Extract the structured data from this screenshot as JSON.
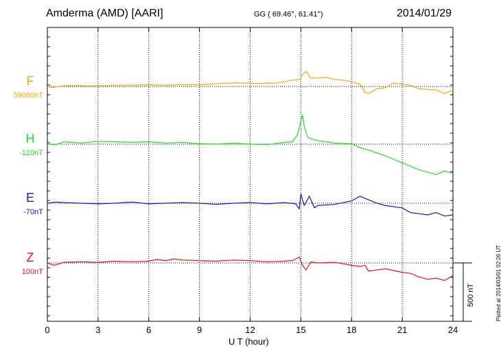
{
  "header": {
    "station": "Amderma (AMD)  [AARI]",
    "coords": "GG ( 69.46°,  61.41°)",
    "date": "2014/01/29"
  },
  "footer": {
    "plotted": "Plotted at 2014/03/01 02:26 UT"
  },
  "chart_data": {
    "type": "line",
    "xlabel": "U T (hour)",
    "xlim": [
      0,
      24
    ],
    "x_ticks": [
      "0",
      "3",
      "6",
      "9",
      "12",
      "15",
      "18",
      "21",
      "24"
    ],
    "grid": true,
    "scale_bar": {
      "label": "500 nT",
      "value_nT": 500
    },
    "series": [
      {
        "name": "F",
        "baseline_label": "59060nT",
        "color": "#f0a800",
        "x": [
          0,
          0.3,
          0.8,
          1.5,
          2.5,
          4,
          5,
          6,
          7,
          8,
          9,
          10,
          11,
          12,
          12.5,
          13,
          13.5,
          14,
          14.5,
          14.9,
          15.1,
          15.3,
          15.6,
          16,
          16.5,
          17,
          17.5,
          18,
          18.5,
          18.8,
          19,
          19.5,
          20,
          20.5,
          21,
          21.5,
          22,
          22.5,
          23,
          23.5,
          24
        ],
        "values": [
          0,
          -10,
          5,
          8,
          5,
          10,
          12,
          14,
          12,
          15,
          15,
          25,
          30,
          30,
          25,
          30,
          28,
          40,
          55,
          60,
          100,
          130,
          70,
          75,
          80,
          60,
          55,
          40,
          20,
          -50,
          -60,
          -20,
          -10,
          30,
          20,
          10,
          -20,
          -25,
          -30,
          -60,
          -30
        ]
      },
      {
        "name": "H",
        "baseline_label": "-120nT",
        "color": "#22dd22",
        "x": [
          0,
          0.5,
          1,
          2,
          3,
          4,
          5,
          6,
          7,
          8,
          9,
          10,
          11,
          12,
          13,
          14,
          14.5,
          14.8,
          15,
          15.1,
          15.2,
          15.4,
          15.7,
          16,
          17,
          18,
          18.5,
          19,
          20,
          21,
          22,
          22.5,
          23,
          23.5,
          24
        ],
        "values": [
          0,
          -5,
          20,
          10,
          25,
          20,
          15,
          20,
          10,
          15,
          5,
          0,
          10,
          0,
          -5,
          15,
          20,
          80,
          200,
          250,
          150,
          60,
          40,
          30,
          10,
          5,
          -30,
          -50,
          -100,
          -160,
          -220,
          -240,
          -260,
          -230,
          -250
        ]
      },
      {
        "name": "E",
        "baseline_label": "-70nT",
        "color": "#1515cc",
        "x": [
          0,
          0.5,
          1,
          2,
          3,
          4,
          5,
          6,
          7,
          8,
          9,
          10,
          11,
          12,
          13,
          14,
          14.7,
          14.9,
          15,
          15.2,
          15.5,
          15.8,
          16,
          17,
          18,
          18.5,
          19,
          19.5,
          20,
          21,
          21.5,
          22,
          22.5,
          23,
          23.5,
          24
        ],
        "values": [
          0,
          10,
          5,
          0,
          -5,
          0,
          10,
          -5,
          0,
          5,
          0,
          -10,
          0,
          5,
          -5,
          5,
          -5,
          -50,
          80,
          -20,
          60,
          -40,
          -20,
          -10,
          20,
          60,
          30,
          0,
          -20,
          -40,
          -80,
          -90,
          -100,
          -80,
          -110,
          -100
        ]
      },
      {
        "name": "Z",
        "baseline_label": "100nT",
        "color": "#ee1111",
        "x": [
          0,
          0.4,
          1,
          2,
          3,
          4,
          5,
          6,
          6.5,
          7,
          7.5,
          8,
          9,
          10,
          11,
          12,
          13,
          14,
          14.5,
          14.9,
          15.1,
          15.3,
          15.6,
          16,
          17,
          18,
          18.5,
          18.8,
          19,
          19.5,
          20,
          21,
          21.5,
          22,
          22.5,
          23,
          23.5,
          24
        ],
        "values": [
          0,
          -20,
          5,
          10,
          5,
          15,
          10,
          15,
          30,
          20,
          35,
          25,
          20,
          15,
          25,
          20,
          10,
          15,
          20,
          50,
          -20,
          -60,
          10,
          0,
          5,
          -20,
          -30,
          -20,
          -70,
          -60,
          -50,
          -80,
          -90,
          -120,
          -140,
          -130,
          -150,
          -110
        ]
      }
    ]
  }
}
